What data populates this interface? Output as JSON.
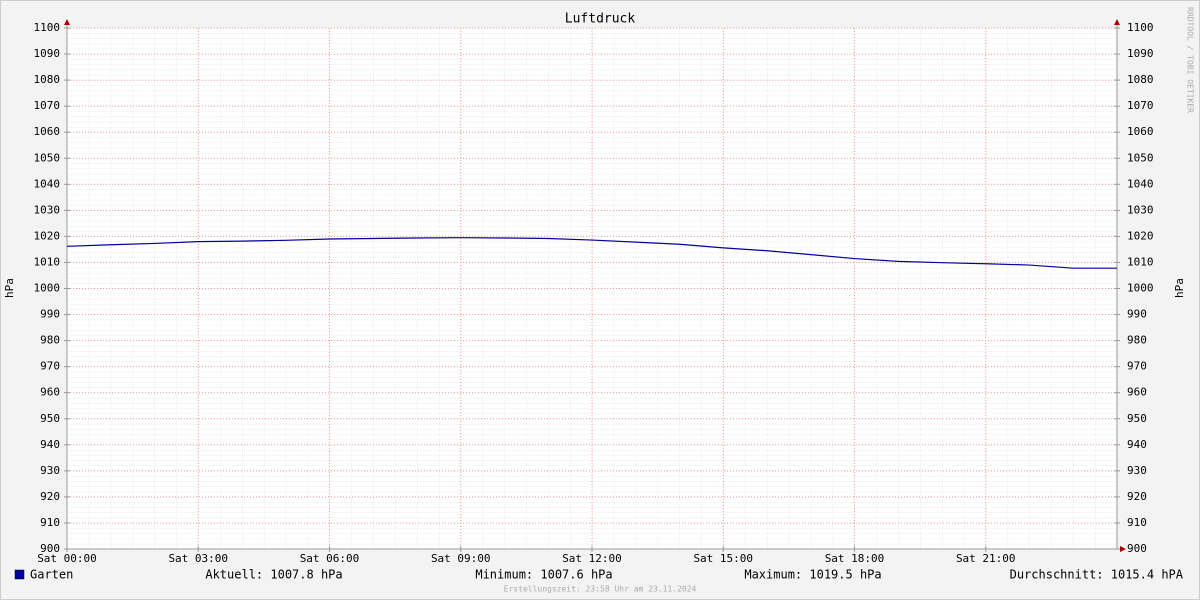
{
  "chart_data": {
    "type": "line",
    "title": "Luftdruck",
    "y_label": "hPa",
    "y2_label": "hPa",
    "x": [
      0,
      1,
      2,
      3,
      4,
      5,
      6,
      7,
      8,
      9,
      10,
      11,
      12,
      13,
      14,
      15,
      16,
      17,
      18,
      19,
      20,
      21,
      22,
      23,
      24
    ],
    "xlim": [
      0,
      24
    ],
    "xticks": [
      {
        "value": 0,
        "label": "Sat 00:00"
      },
      {
        "value": 3,
        "label": "Sat 03:00"
      },
      {
        "value": 6,
        "label": "Sat 06:00"
      },
      {
        "value": 9,
        "label": "Sat 09:00"
      },
      {
        "value": 12,
        "label": "Sat 12:00"
      },
      {
        "value": 15,
        "label": "Sat 15:00"
      },
      {
        "value": 18,
        "label": "Sat 18:00"
      },
      {
        "value": 21,
        "label": "Sat 21:00"
      }
    ],
    "ylim": [
      900,
      1100
    ],
    "yticks": [
      900,
      910,
      920,
      930,
      940,
      950,
      960,
      970,
      980,
      990,
      1000,
      1010,
      1020,
      1030,
      1040,
      1050,
      1060,
      1070,
      1080,
      1090,
      1100
    ],
    "grid": true,
    "series": [
      {
        "name": "Garten",
        "color": "#0000a0",
        "values": [
          1016.2,
          1016.8,
          1017.3,
          1018.0,
          1018.2,
          1018.5,
          1019.0,
          1019.2,
          1019.4,
          1019.5,
          1019.4,
          1019.2,
          1018.6,
          1017.8,
          1017.0,
          1015.6,
          1014.5,
          1013.0,
          1011.5,
          1010.4,
          1009.9,
          1009.5,
          1009.0,
          1007.8,
          1007.8
        ]
      }
    ],
    "legend_stats": [
      "Aktuell: 1007.8 hPa",
      "Minimum: 1007.6 hPa",
      "Maximum: 1019.5 hPa",
      "Durchschnitt: 1015.4 hPA"
    ],
    "footer": "Erstellungszeit: 23:58 Uhr am 23.11.2024",
    "watermark": "RRDTOOL / TOBI OETIKER"
  }
}
